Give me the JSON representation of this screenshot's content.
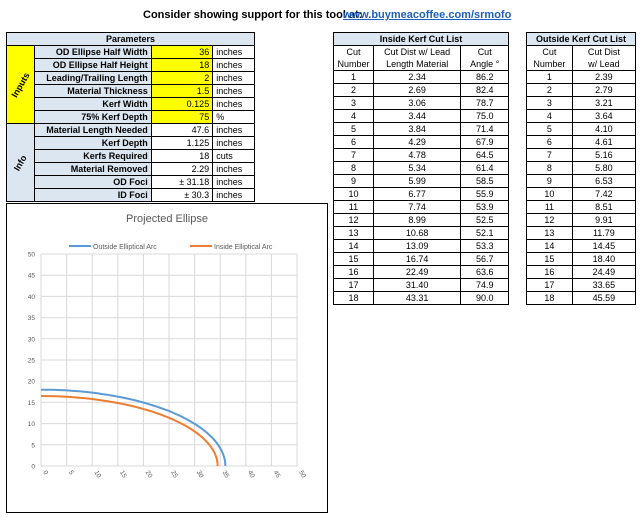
{
  "banner": {
    "label": "Consider showing support for this tool at:",
    "link": "www.buymeacoffee.com/srmofo"
  },
  "parameters": {
    "title": "Parameters",
    "inputs_label": "Inputs",
    "info_label": "Info",
    "inputs": [
      {
        "label": "OD Ellipse Half Width",
        "value": "36",
        "unit": "inches"
      },
      {
        "label": "OD Ellipse Half Height",
        "value": "18",
        "unit": "inches"
      },
      {
        "label": "Leading/Trailing Length",
        "value": "2",
        "unit": "inches"
      },
      {
        "label": "Material Thickness",
        "value": "1.5",
        "unit": "inches"
      },
      {
        "label": "Kerf Width",
        "value": "0.125",
        "unit": "inches"
      },
      {
        "label": "75% Kerf Depth",
        "value": "75",
        "unit": "%"
      }
    ],
    "info": [
      {
        "label": "Material Length Needed",
        "value": "47.6",
        "unit": "inches"
      },
      {
        "label": "Kerf Depth",
        "value": "1.125",
        "unit": "inches"
      },
      {
        "label": "Kerfs Required",
        "value": "18",
        "unit": "cuts"
      },
      {
        "label": "Material Removed",
        "value": "2.29",
        "unit": "inches"
      },
      {
        "label": "OD Foci",
        "value": "± 31.18",
        "unit": "inches"
      },
      {
        "label": "ID Foci",
        "value": "± 30.3",
        "unit": "inches"
      }
    ]
  },
  "inside_kerf": {
    "title": "Inside Kerf Cut List",
    "col1": [
      "Cut",
      "Number"
    ],
    "col2": [
      "Cut Dist w/ Lead",
      "Length Material"
    ],
    "col3": [
      "Cut",
      "Angle °"
    ],
    "rows": [
      [
        "1",
        "2.34",
        "86.2"
      ],
      [
        "2",
        "2.69",
        "82.4"
      ],
      [
        "3",
        "3.06",
        "78.7"
      ],
      [
        "4",
        "3.44",
        "75.0"
      ],
      [
        "5",
        "3.84",
        "71.4"
      ],
      [
        "6",
        "4.29",
        "67.9"
      ],
      [
        "7",
        "4.78",
        "64.5"
      ],
      [
        "8",
        "5.34",
        "61.4"
      ],
      [
        "9",
        "5.99",
        "58.5"
      ],
      [
        "10",
        "6.77",
        "55.9"
      ],
      [
        "11",
        "7.74",
        "53.9"
      ],
      [
        "12",
        "8.99",
        "52.5"
      ],
      [
        "13",
        "10.68",
        "52.1"
      ],
      [
        "14",
        "13.09",
        "53.3"
      ],
      [
        "15",
        "16.74",
        "56.7"
      ],
      [
        "16",
        "22.49",
        "63.6"
      ],
      [
        "17",
        "31.40",
        "74.9"
      ],
      [
        "18",
        "43.31",
        "90.0"
      ]
    ]
  },
  "outside_kerf": {
    "title": "Outside Kerf Cut List",
    "col1": [
      "Cut",
      "Number"
    ],
    "col2": [
      "Cut Dist",
      "w/ Lead"
    ],
    "rows": [
      [
        "1",
        "2.39"
      ],
      [
        "2",
        "2.79"
      ],
      [
        "3",
        "3.21"
      ],
      [
        "4",
        "3.64"
      ],
      [
        "5",
        "4.10"
      ],
      [
        "6",
        "4.61"
      ],
      [
        "7",
        "5.16"
      ],
      [
        "8",
        "5.80"
      ],
      [
        "9",
        "6.53"
      ],
      [
        "10",
        "7.42"
      ],
      [
        "11",
        "8.51"
      ],
      [
        "12",
        "9.91"
      ],
      [
        "13",
        "11.79"
      ],
      [
        "14",
        "14.45"
      ],
      [
        "15",
        "18.40"
      ],
      [
        "16",
        "24.49"
      ],
      [
        "17",
        "33.65"
      ],
      [
        "18",
        "45.59"
      ]
    ]
  },
  "chart_data": {
    "type": "line",
    "title": "Projected Ellipse",
    "xlabel": "",
    "ylabel": "",
    "xlim": [
      0,
      50
    ],
    "ylim": [
      0,
      50
    ],
    "xticks": [
      "0",
      "5",
      "10",
      "15",
      "20",
      "25",
      "30",
      "35",
      "40",
      "45",
      "50"
    ],
    "yticks": [
      "0",
      "5",
      "10",
      "15",
      "20",
      "25",
      "30",
      "35",
      "40",
      "45",
      "50"
    ],
    "grid": true,
    "legend_position": "top",
    "series": [
      {
        "name": "Outside Elliptical Arc",
        "color": "#5b9bd5",
        "a": 36,
        "b": 18,
        "x": [
          0,
          5,
          10,
          15,
          20,
          25,
          30,
          33,
          35,
          36
        ],
        "y": [
          18,
          17.83,
          17.29,
          16.36,
          14.97,
          12.95,
          9.95,
          7.19,
          4.22,
          0
        ]
      },
      {
        "name": "Inside Elliptical Arc",
        "color": "#ed7d31",
        "a": 34.5,
        "b": 16.5,
        "x": [
          0,
          5,
          10,
          15,
          20,
          25,
          30,
          32,
          34,
          34.5
        ],
        "y": [
          16.5,
          16.33,
          15.79,
          14.86,
          13.44,
          11.37,
          8.15,
          6.17,
          2.81,
          0
        ]
      }
    ]
  }
}
